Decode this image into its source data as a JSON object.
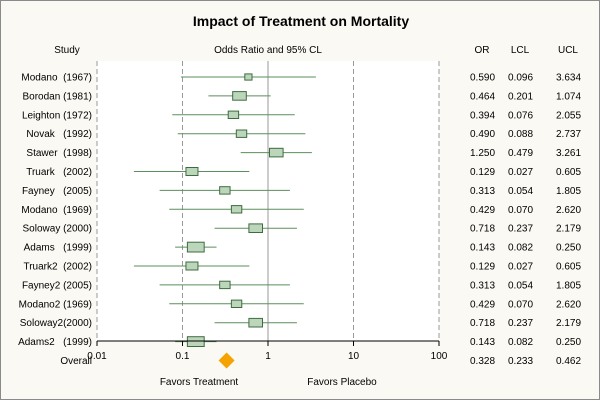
{
  "chart_data": {
    "type": "forest",
    "title": "Impact of Treatment on Mortality",
    "headers": {
      "study": "Study",
      "plot": "Odds Ratio and 95% CL",
      "or": "OR",
      "lcl": "LCL",
      "ucl": "UCL"
    },
    "x_scale": "log",
    "xlim": [
      0.01,
      100
    ],
    "x_ticks": [
      {
        "value": 0.01,
        "label": "0.01"
      },
      {
        "value": 0.1,
        "label": "0.1"
      },
      {
        "value": 1,
        "label": "1"
      },
      {
        "value": 10,
        "label": "10"
      },
      {
        "value": 100,
        "label": "100"
      }
    ],
    "reference_lines": [
      0.01,
      0.1,
      1,
      10,
      100
    ],
    "studies": [
      {
        "name": "Modano  (1967)",
        "or": 0.59,
        "lcl": 0.096,
        "ucl": 3.634,
        "or_text": "0.590",
        "lcl_text": "0.096",
        "ucl_text": "3.634",
        "weight": 1
      },
      {
        "name": "Borodan (1981)",
        "or": 0.464,
        "lcl": 0.201,
        "ucl": 1.074,
        "or_text": "0.464",
        "lcl_text": "0.201",
        "ucl_text": "1.074",
        "weight": 3
      },
      {
        "name": "Leighton (1972)",
        "or": 0.394,
        "lcl": 0.076,
        "ucl": 2.055,
        "or_text": "0.394",
        "lcl_text": "0.076",
        "ucl_text": "2.055",
        "weight": 2
      },
      {
        "name": "Novak   (1992)",
        "or": 0.49,
        "lcl": 0.088,
        "ucl": 2.737,
        "or_text": "0.490",
        "lcl_text": "0.088",
        "ucl_text": "2.737",
        "weight": 2
      },
      {
        "name": "Stawer  (1998)",
        "or": 1.25,
        "lcl": 0.479,
        "ucl": 3.261,
        "or_text": "1.250",
        "lcl_text": "0.479",
        "ucl_text": "3.261",
        "weight": 3
      },
      {
        "name": "Truark   (2002)",
        "or": 0.129,
        "lcl": 0.027,
        "ucl": 0.605,
        "or_text": "0.129",
        "lcl_text": "0.027",
        "ucl_text": "0.605",
        "weight": 2.5
      },
      {
        "name": "Fayney   (2005)",
        "or": 0.313,
        "lcl": 0.054,
        "ucl": 1.805,
        "or_text": "0.313",
        "lcl_text": "0.054",
        "ucl_text": "1.805",
        "weight": 2
      },
      {
        "name": "Modano  (1969)",
        "or": 0.429,
        "lcl": 0.07,
        "ucl": 2.62,
        "or_text": "0.429",
        "lcl_text": "0.070",
        "ucl_text": "2.620",
        "weight": 2
      },
      {
        "name": "Soloway (2000)",
        "or": 0.718,
        "lcl": 0.237,
        "ucl": 2.179,
        "or_text": "0.718",
        "lcl_text": "0.237",
        "ucl_text": "2.179",
        "weight": 3
      },
      {
        "name": "Adams   (1999)",
        "or": 0.143,
        "lcl": 0.082,
        "ucl": 0.25,
        "or_text": "0.143",
        "lcl_text": "0.082",
        "ucl_text": "0.250",
        "weight": 4
      },
      {
        "name": "Truark2  (2002)",
        "or": 0.129,
        "lcl": 0.027,
        "ucl": 0.605,
        "or_text": "0.129",
        "lcl_text": "0.027",
        "ucl_text": "0.605",
        "weight": 2.5
      },
      {
        "name": "Fayney2 (2005)",
        "or": 0.313,
        "lcl": 0.054,
        "ucl": 1.805,
        "or_text": "0.313",
        "lcl_text": "0.054",
        "ucl_text": "1.805",
        "weight": 2
      },
      {
        "name": "Modano2 (1969)",
        "or": 0.429,
        "lcl": 0.07,
        "ucl": 2.62,
        "or_text": "0.429",
        "lcl_text": "0.070",
        "ucl_text": "2.620",
        "weight": 2
      },
      {
        "name": "Soloway2(2000)",
        "or": 0.718,
        "lcl": 0.237,
        "ucl": 2.179,
        "or_text": "0.718",
        "lcl_text": "0.237",
        "ucl_text": "2.179",
        "weight": 3
      },
      {
        "name": "Adams2   (1999)",
        "or": 0.143,
        "lcl": 0.082,
        "ucl": 0.25,
        "or_text": "0.143",
        "lcl_text": "0.082",
        "ucl_text": "0.250",
        "weight": 4
      }
    ],
    "overall": {
      "name": "Overall",
      "or": 0.328,
      "lcl": 0.233,
      "ucl": 0.462,
      "or_text": "0.328",
      "lcl_text": "0.233",
      "ucl_text": "0.462"
    },
    "footer_labels": {
      "left": "Favors Treatment",
      "right": "Favors Placebo"
    },
    "colors": {
      "background": "#fbf9f3",
      "plot_background": "#ffffff",
      "box_fill": "#bcd6bc",
      "box_stroke": "#3f6b3f",
      "ci_line": "#5b8f5b",
      "diamond": "#f5a300",
      "ref_line": "#9a9a9a"
    }
  }
}
